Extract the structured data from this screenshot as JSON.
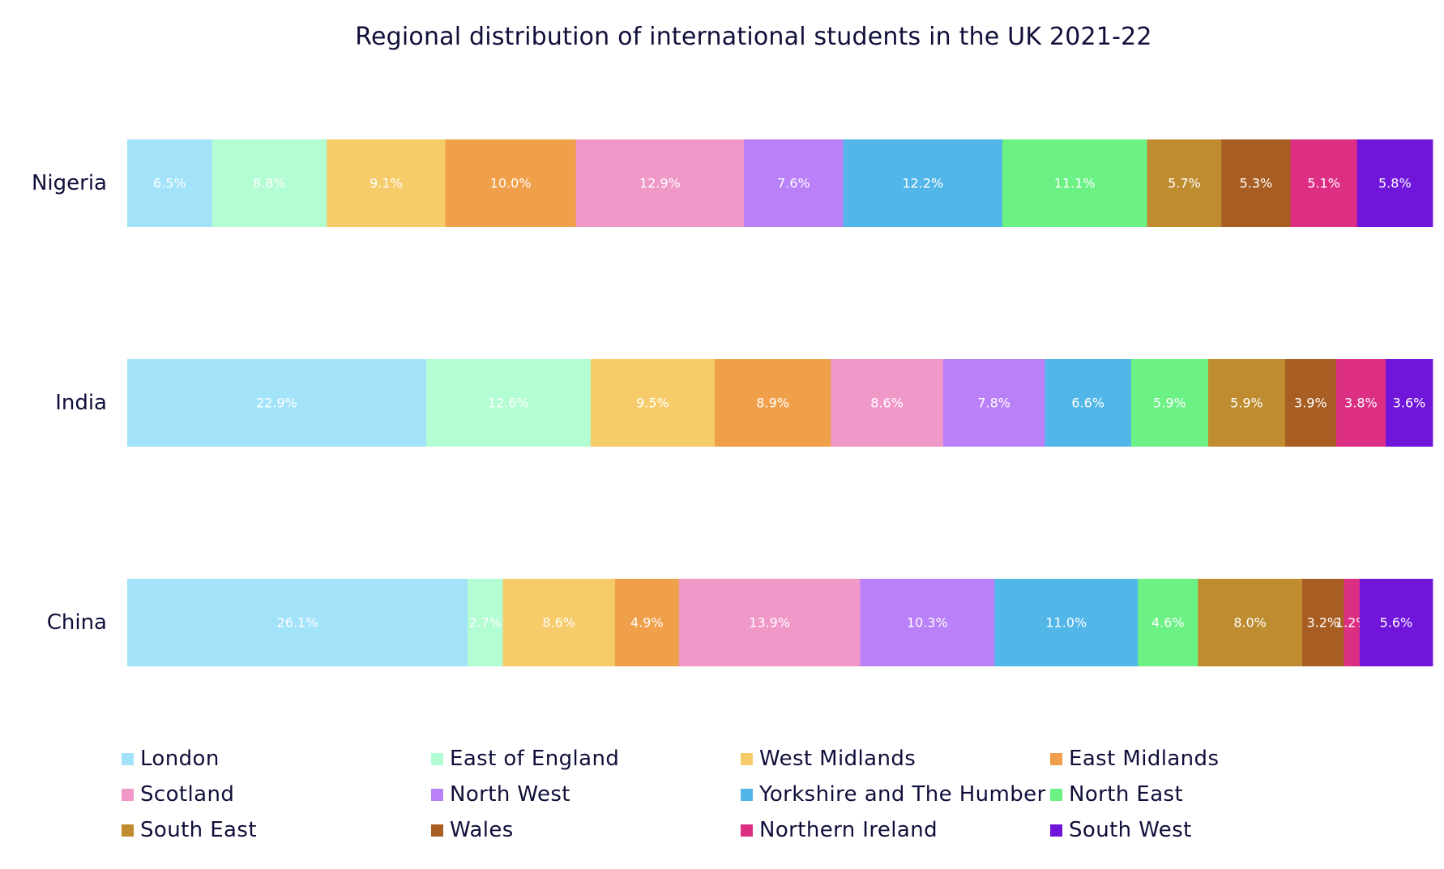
{
  "chart_data": {
    "type": "bar",
    "orientation": "horizontal",
    "stacked": true,
    "title": "Regional distribution of international students in the UK 2021-22",
    "categories": [
      "Nigeria",
      "India",
      "China"
    ],
    "series": [
      {
        "name": "London",
        "color": "#a3e3fa",
        "values": [
          6.5,
          22.9,
          26.1
        ],
        "labels": [
          "6.5%",
          "22.9%",
          "26.1%"
        ]
      },
      {
        "name": "East of England",
        "color": "#b2fdd2",
        "values": [
          8.8,
          12.6,
          2.7
        ],
        "labels": [
          "8.8%",
          "12.6%",
          "2.7%"
        ]
      },
      {
        "name": "West Midlands",
        "color": "#f6cb6a",
        "values": [
          9.1,
          9.5,
          8.6
        ],
        "labels": [
          "9.1%",
          "9.5%",
          "8.6%"
        ]
      },
      {
        "name": "East Midlands",
        "color": "#f0a04b",
        "values": [
          10.0,
          8.9,
          4.9
        ],
        "labels": [
          "10.0%",
          "8.9%",
          "4.9%"
        ]
      },
      {
        "name": "Scotland",
        "color": "#f098c8",
        "values": [
          12.9,
          8.6,
          13.9
        ],
        "labels": [
          "12.9%",
          "8.6%",
          "13.9%"
        ]
      },
      {
        "name": "North West",
        "color": "#b980f8",
        "values": [
          7.6,
          7.8,
          10.3
        ],
        "labels": [
          "7.6%",
          "7.8%",
          "10.3%"
        ]
      },
      {
        "name": "Yorkshire and The Humber",
        "color": "#52b7e8",
        "values": [
          12.2,
          6.6,
          11.0
        ],
        "labels": [
          "12.2%",
          "6.6%",
          "11.0%"
        ]
      },
      {
        "name": "North East",
        "color": "#6cf185",
        "values": [
          11.1,
          5.9,
          4.6
        ],
        "labels": [
          "11.1%",
          "5.9%",
          "4.6%"
        ]
      },
      {
        "name": "South East",
        "color": "#bf8c30",
        "values": [
          5.7,
          5.9,
          8.0
        ],
        "labels": [
          "5.7%",
          "5.9%",
          "8.0%"
        ]
      },
      {
        "name": "Wales",
        "color": "#a85e22",
        "values": [
          5.3,
          3.9,
          3.2
        ],
        "labels": [
          "5.3%",
          "3.9%",
          "3.2%"
        ]
      },
      {
        "name": "Northern Ireland",
        "color": "#dc2f83",
        "values": [
          5.1,
          3.8,
          1.2
        ],
        "labels": [
          "5.1%",
          "3.8%",
          "1.2%"
        ]
      },
      {
        "name": "South West",
        "color": "#7015da",
        "values": [
          5.8,
          3.6,
          5.6
        ],
        "labels": [
          "5.8%",
          "3.6%",
          "5.6%"
        ]
      }
    ],
    "xlim": [
      0,
      100
    ],
    "grid": false,
    "legend_position": "bottom",
    "xlabel": "",
    "ylabel": ""
  }
}
